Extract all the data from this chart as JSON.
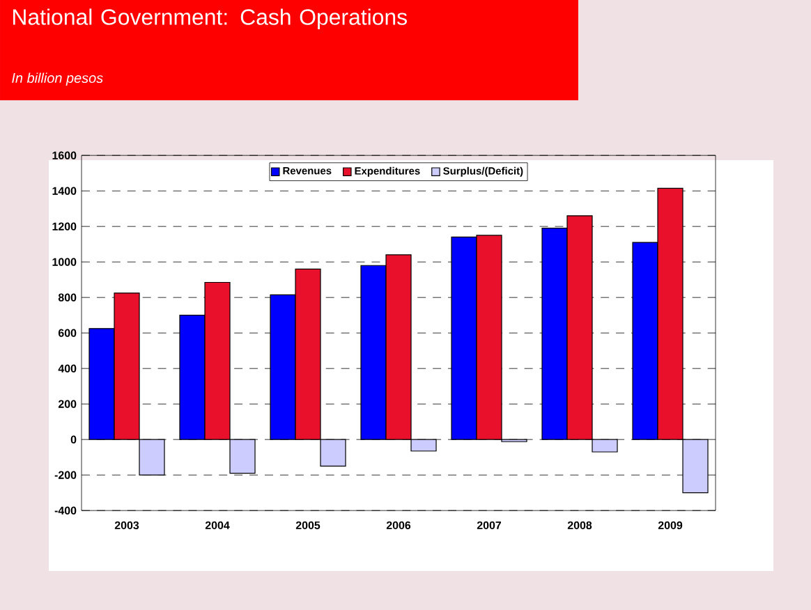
{
  "chart_data": {
    "type": "bar",
    "title": "National Government: Cash Operations",
    "subtitle": "In billion pesos",
    "categories": [
      "2003",
      "2004",
      "2005",
      "2006",
      "2007",
      "2008",
      "2009"
    ],
    "series": [
      {
        "name": "Revenues",
        "color": "#0000ff",
        "values": [
          625,
          700,
          815,
          980,
          1140,
          1190,
          1110
        ]
      },
      {
        "name": "Expenditures",
        "color": "#e8102a",
        "values": [
          825,
          885,
          960,
          1040,
          1150,
          1260,
          1415
        ]
      },
      {
        "name": "Surplus/(Deficit)",
        "color": "#ccccff",
        "values": [
          -200,
          -190,
          -150,
          -65,
          -12,
          -70,
          -300
        ]
      }
    ],
    "ylim": [
      -400,
      1600
    ],
    "yticks": [
      -400,
      -200,
      0,
      200,
      400,
      600,
      800,
      1000,
      1200,
      1400,
      1600
    ],
    "grid": "y",
    "legend": "top"
  }
}
